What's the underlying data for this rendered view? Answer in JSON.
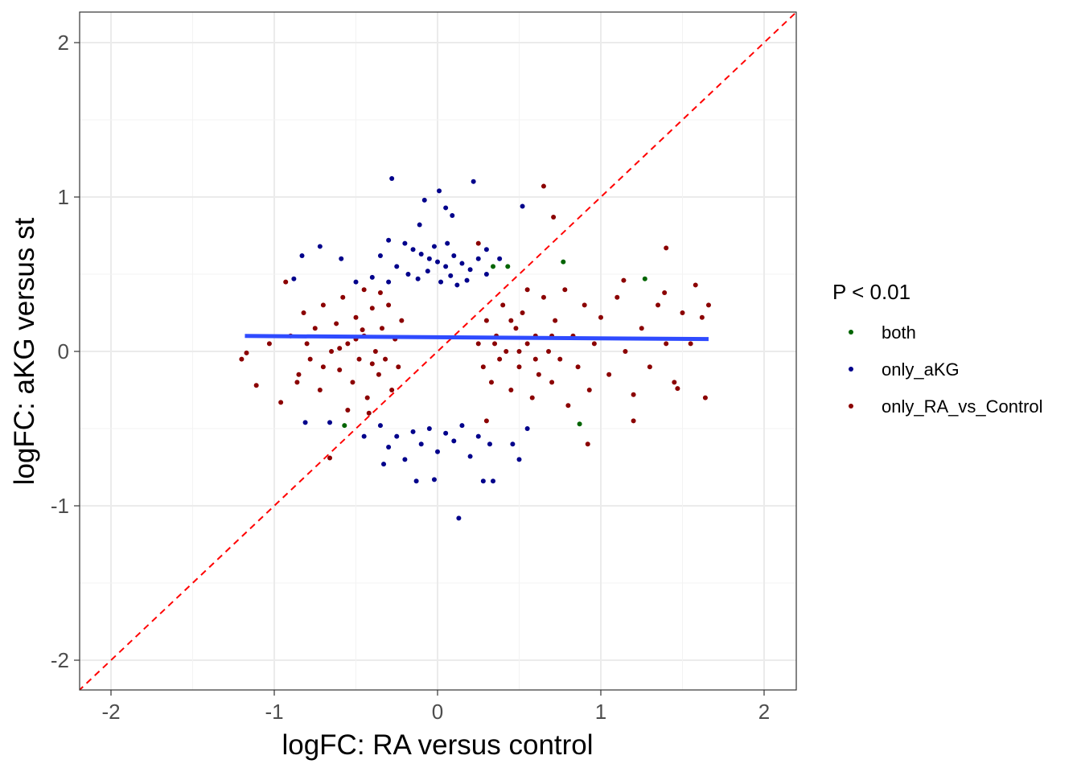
{
  "chart_data": {
    "type": "scatter",
    "title": "",
    "xlabel": "logFC: RA versus control",
    "ylabel": "logFC: aKG versus st",
    "xlim": [
      -2.2,
      2.2
    ],
    "ylim": [
      -2.2,
      2.2
    ],
    "xticks": [
      -2,
      -1,
      0,
      1,
      2
    ],
    "yticks": [
      -2,
      -1,
      0,
      1,
      2
    ],
    "xtick_labels": [
      "-2",
      "-1",
      "0",
      "1",
      "2"
    ],
    "ytick_labels": [
      "-2",
      "-1",
      "0",
      "1",
      "2"
    ],
    "grid": true,
    "legend": {
      "title": "P < 0.01",
      "placement": "right"
    },
    "reference_line": {
      "type": "y=x",
      "color": "#ff0000",
      "style": "dashed"
    },
    "regression_line": {
      "x": [
        -1.18,
        1.66
      ],
      "y": [
        0.1,
        0.08
      ],
      "color": "#2f4bff"
    },
    "series": [
      {
        "name": "both",
        "color": "#006400",
        "points": [
          [
            0.34,
            0.55
          ],
          [
            0.43,
            0.55
          ],
          [
            0.77,
            0.58
          ],
          [
            1.27,
            0.47
          ],
          [
            -0.57,
            -0.48
          ],
          [
            0.87,
            -0.47
          ]
        ]
      },
      {
        "name": "only_aKG",
        "color": "#00008b",
        "points": [
          [
            -0.28,
            1.12
          ],
          [
            0.22,
            1.1
          ],
          [
            0.01,
            1.04
          ],
          [
            -0.08,
            0.98
          ],
          [
            0.05,
            0.93
          ],
          [
            0.09,
            0.88
          ],
          [
            0.52,
            0.94
          ],
          [
            -0.11,
            0.82
          ],
          [
            -0.72,
            0.68
          ],
          [
            -0.83,
            0.62
          ],
          [
            -0.59,
            0.6
          ],
          [
            -0.3,
            0.72
          ],
          [
            -0.2,
            0.7
          ],
          [
            -0.15,
            0.66
          ],
          [
            -0.1,
            0.63
          ],
          [
            -0.05,
            0.6
          ],
          [
            0.0,
            0.58
          ],
          [
            0.05,
            0.55
          ],
          [
            0.1,
            0.62
          ],
          [
            0.15,
            0.57
          ],
          [
            0.2,
            0.53
          ],
          [
            0.25,
            0.6
          ],
          [
            0.3,
            0.5
          ],
          [
            -0.25,
            0.55
          ],
          [
            -0.18,
            0.5
          ],
          [
            -0.12,
            0.47
          ],
          [
            -0.06,
            0.52
          ],
          [
            0.02,
            0.45
          ],
          [
            0.08,
            0.49
          ],
          [
            0.12,
            0.43
          ],
          [
            0.18,
            0.46
          ],
          [
            -0.3,
            0.45
          ],
          [
            -0.4,
            0.48
          ],
          [
            -0.5,
            0.45
          ],
          [
            -0.88,
            0.47
          ],
          [
            -0.35,
            0.62
          ],
          [
            0.3,
            0.66
          ],
          [
            0.38,
            0.6
          ],
          [
            -0.02,
            0.68
          ],
          [
            0.06,
            0.7
          ],
          [
            -0.35,
            -0.48
          ],
          [
            -0.25,
            -0.55
          ],
          [
            -0.15,
            -0.52
          ],
          [
            -0.05,
            -0.5
          ],
          [
            0.05,
            -0.53
          ],
          [
            0.15,
            -0.48
          ],
          [
            0.25,
            -0.55
          ],
          [
            0.32,
            -0.6
          ],
          [
            -0.3,
            -0.62
          ],
          [
            -0.2,
            -0.7
          ],
          [
            -0.1,
            -0.6
          ],
          [
            0.0,
            -0.65
          ],
          [
            0.1,
            -0.58
          ],
          [
            0.2,
            -0.68
          ],
          [
            -0.13,
            -0.84
          ],
          [
            -0.02,
            -0.83
          ],
          [
            0.28,
            -0.84
          ],
          [
            0.34,
            -0.84
          ],
          [
            0.13,
            -1.08
          ],
          [
            -0.33,
            -0.73
          ],
          [
            0.46,
            -0.6
          ],
          [
            0.5,
            -0.7
          ],
          [
            -0.81,
            -0.46
          ],
          [
            -0.66,
            -0.46
          ],
          [
            0.55,
            -0.5
          ],
          [
            -0.45,
            -0.55
          ]
        ]
      },
      {
        "name": "only_RA_vs_Control",
        "color": "#8b0000",
        "points": [
          [
            -1.2,
            -0.05
          ],
          [
            -1.17,
            -0.01
          ],
          [
            -1.11,
            -0.22
          ],
          [
            -1.03,
            0.05
          ],
          [
            -0.96,
            -0.33
          ],
          [
            -0.93,
            0.45
          ],
          [
            -0.9,
            0.1
          ],
          [
            -0.85,
            -0.15
          ],
          [
            -0.82,
            0.25
          ],
          [
            -0.78,
            -0.05
          ],
          [
            -0.75,
            0.15
          ],
          [
            -0.72,
            -0.25
          ],
          [
            -0.7,
            0.3
          ],
          [
            -0.65,
            0.0
          ],
          [
            -0.62,
            0.18
          ],
          [
            -0.6,
            -0.12
          ],
          [
            -0.58,
            0.35
          ],
          [
            -0.55,
            0.05
          ],
          [
            -0.52,
            -0.2
          ],
          [
            -0.5,
            0.22
          ],
          [
            -0.48,
            -0.05
          ],
          [
            -0.45,
            0.1
          ],
          [
            -0.43,
            -0.3
          ],
          [
            -0.4,
            0.28
          ],
          [
            -0.38,
            0.0
          ],
          [
            -0.36,
            -0.15
          ],
          [
            -0.34,
            0.15
          ],
          [
            -0.32,
            -0.05
          ],
          [
            -0.3,
            0.3
          ],
          [
            -0.28,
            -0.25
          ],
          [
            -0.26,
            0.08
          ],
          [
            -0.24,
            -0.1
          ],
          [
            -0.22,
            0.2
          ],
          [
            -0.55,
            -0.38
          ],
          [
            -0.45,
            0.4
          ],
          [
            -0.66,
            -0.69
          ],
          [
            -0.42,
            -0.4
          ],
          [
            -0.35,
            0.38
          ],
          [
            -0.5,
            0.08
          ],
          [
            -0.6,
            0.02
          ],
          [
            -0.7,
            -0.1
          ],
          [
            -0.8,
            0.05
          ],
          [
            -0.86,
            -0.2
          ],
          [
            -0.4,
            -0.08
          ],
          [
            -0.46,
            0.14
          ],
          [
            0.25,
            0.05
          ],
          [
            0.28,
            -0.1
          ],
          [
            0.3,
            0.2
          ],
          [
            0.33,
            -0.2
          ],
          [
            0.36,
            0.1
          ],
          [
            0.38,
            -0.05
          ],
          [
            0.4,
            0.3
          ],
          [
            0.42,
            0.0
          ],
          [
            0.45,
            -0.25
          ],
          [
            0.48,
            0.15
          ],
          [
            0.5,
            -0.1
          ],
          [
            0.52,
            0.25
          ],
          [
            0.55,
            0.05
          ],
          [
            0.58,
            -0.3
          ],
          [
            0.6,
            0.1
          ],
          [
            0.62,
            -0.15
          ],
          [
            0.65,
            0.35
          ],
          [
            0.68,
            0.0
          ],
          [
            0.7,
            -0.2
          ],
          [
            0.72,
            0.2
          ],
          [
            0.75,
            -0.05
          ],
          [
            0.78,
            0.4
          ],
          [
            0.8,
            -0.35
          ],
          [
            0.83,
            0.1
          ],
          [
            0.86,
            -0.1
          ],
          [
            0.9,
            0.3
          ],
          [
            0.93,
            -0.25
          ],
          [
            0.96,
            0.05
          ],
          [
            1.0,
            0.22
          ],
          [
            1.05,
            -0.15
          ],
          [
            1.1,
            0.35
          ],
          [
            1.15,
            0.0
          ],
          [
            1.2,
            -0.28
          ],
          [
            1.25,
            0.15
          ],
          [
            1.3,
            -0.1
          ],
          [
            1.35,
            0.3
          ],
          [
            1.4,
            0.05
          ],
          [
            1.45,
            -0.2
          ],
          [
            1.5,
            0.25
          ],
          [
            1.55,
            0.05
          ],
          [
            1.58,
            0.43
          ],
          [
            1.62,
            0.22
          ],
          [
            1.66,
            0.3
          ],
          [
            1.64,
            -0.3
          ],
          [
            1.47,
            -0.24
          ],
          [
            1.4,
            0.67
          ],
          [
            1.39,
            0.38
          ],
          [
            0.65,
            1.07
          ],
          [
            0.71,
            0.87
          ],
          [
            0.25,
            0.7
          ],
          [
            0.92,
            -0.6
          ],
          [
            1.14,
            0.46
          ],
          [
            0.55,
            0.4
          ],
          [
            0.45,
            0.2
          ],
          [
            0.35,
            0.05
          ],
          [
            0.6,
            -0.05
          ],
          [
            0.5,
            0.0
          ],
          [
            0.7,
            0.1
          ],
          [
            1.2,
            -0.45
          ],
          [
            0.3,
            -0.45
          ]
        ]
      }
    ]
  }
}
